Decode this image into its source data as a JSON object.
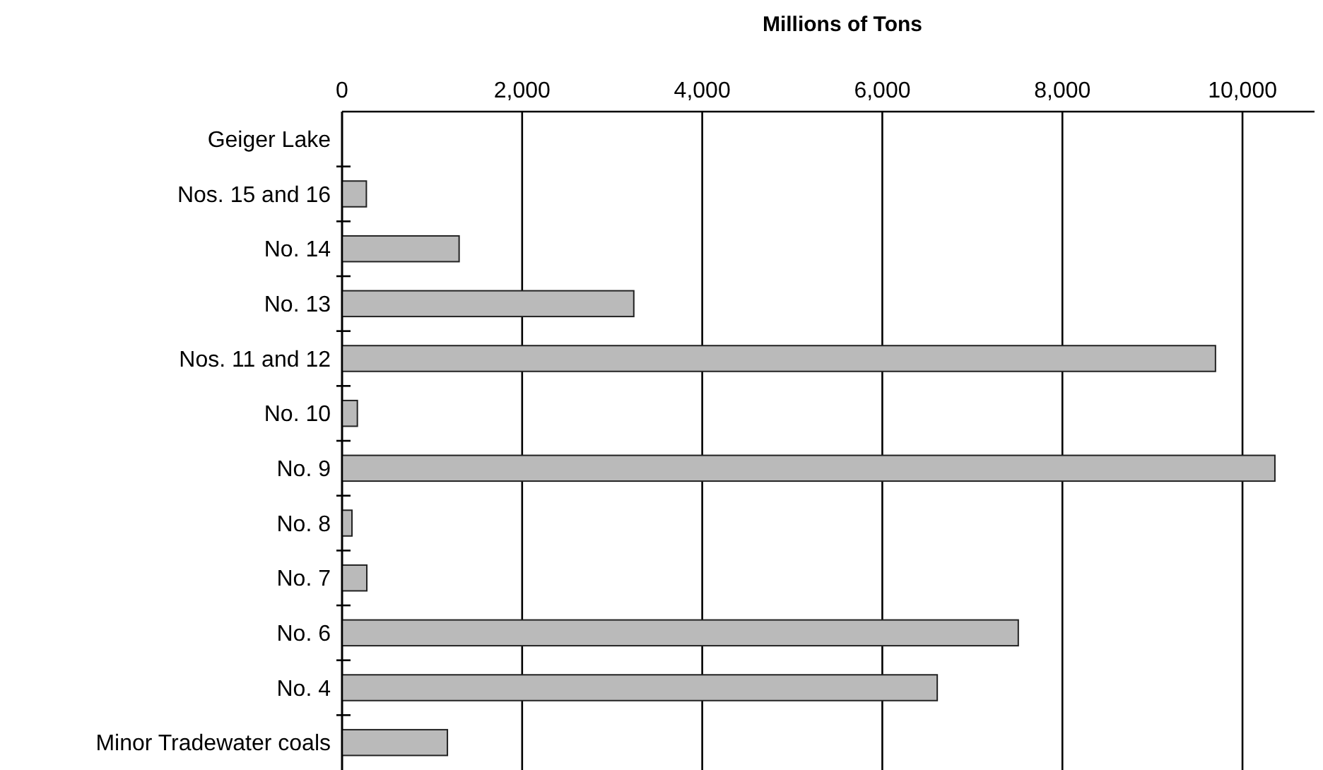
{
  "chart_data": {
    "type": "bar",
    "orientation": "horizontal",
    "xlabel": "Millions of Tons",
    "categories": [
      "Geiger Lake",
      "Nos. 15 and 16",
      "No. 14",
      "No. 13",
      "Nos. 11 and 12",
      "No. 10",
      "No. 9",
      "No. 8",
      "No. 7",
      "No. 6",
      "No. 4",
      "Minor Tradewater coals"
    ],
    "values": [
      0,
      270,
      1300,
      3240,
      9700,
      170,
      10360,
      110,
      275,
      7510,
      6610,
      1170
    ],
    "color": "#bababa",
    "xlim": [
      0,
      10800
    ],
    "xticks": [
      0,
      {
        "value": 2000,
        "label": "2,000"
      },
      {
        "value": 4000,
        "label": "4,000"
      },
      {
        "value": 6000,
        "label": "6,000"
      },
      {
        "value": 8000,
        "label": "8,000"
      },
      {
        "value": 10000,
        "label": "10,000"
      }
    ],
    "grid": "x"
  }
}
